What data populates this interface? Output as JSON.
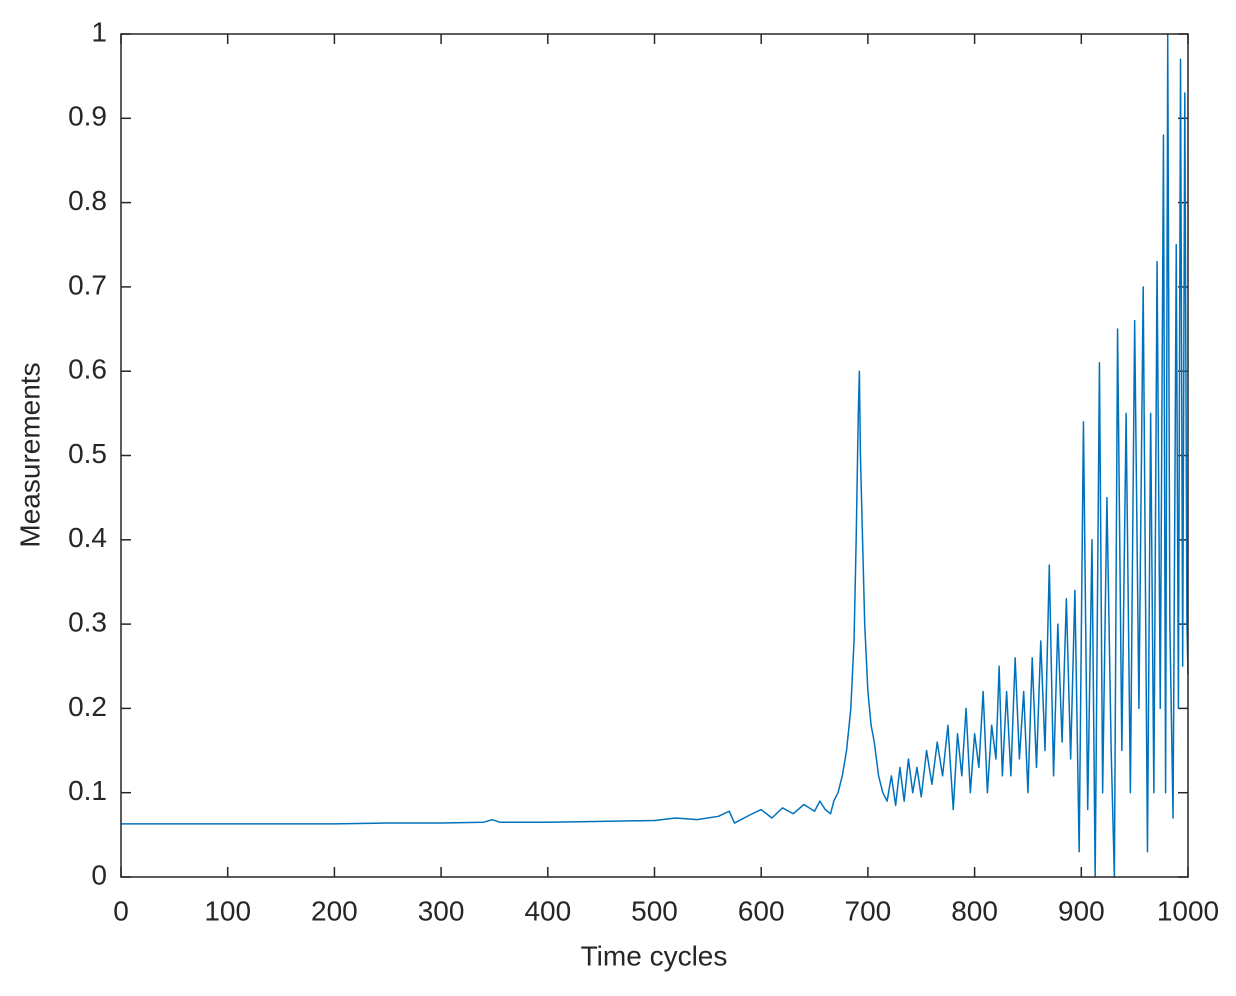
{
  "chart_data": {
    "type": "line",
    "xlabel": "Time cycles",
    "ylabel": "Measurements",
    "xlim": [
      0,
      1000
    ],
    "ylim": [
      0,
      1
    ],
    "xticks": [
      0,
      100,
      200,
      300,
      400,
      500,
      600,
      700,
      800,
      900,
      1000
    ],
    "yticks": [
      0,
      0.1,
      0.2,
      0.3,
      0.4,
      0.5,
      0.6,
      0.7,
      0.8,
      0.9,
      1
    ],
    "grid": false,
    "series": [
      {
        "color": "#0072bd",
        "x": [
          0,
          100,
          200,
          250,
          300,
          340,
          348,
          355,
          400,
          450,
          500,
          520,
          540,
          560,
          570,
          575,
          590,
          600,
          610,
          620,
          630,
          640,
          650,
          655,
          660,
          665,
          668,
          672,
          676,
          680,
          684,
          687,
          689,
          691,
          692,
          693,
          695,
          697,
          700,
          703,
          706,
          710,
          714,
          718,
          722,
          726,
          730,
          734,
          738,
          742,
          746,
          750,
          755,
          760,
          765,
          770,
          775,
          780,
          784,
          788,
          792,
          796,
          800,
          804,
          808,
          812,
          816,
          820,
          823,
          826,
          830,
          834,
          838,
          842,
          846,
          850,
          854,
          858,
          862,
          866,
          870,
          874,
          878,
          882,
          886,
          890,
          894,
          898,
          902,
          906,
          910,
          913,
          917,
          920,
          924,
          928,
          931,
          934,
          938,
          942,
          946,
          950,
          954,
          958,
          962,
          965,
          968,
          971,
          974,
          977,
          979,
          981,
          983,
          986,
          989,
          991,
          993,
          995,
          997,
          999,
          1000
        ],
        "values": [
          0.063,
          0.063,
          0.063,
          0.064,
          0.064,
          0.065,
          0.068,
          0.065,
          0.065,
          0.066,
          0.067,
          0.07,
          0.068,
          0.072,
          0.078,
          0.064,
          0.074,
          0.08,
          0.07,
          0.082,
          0.075,
          0.086,
          0.078,
          0.09,
          0.08,
          0.075,
          0.09,
          0.1,
          0.12,
          0.15,
          0.2,
          0.28,
          0.4,
          0.55,
          0.6,
          0.5,
          0.4,
          0.3,
          0.22,
          0.18,
          0.16,
          0.12,
          0.1,
          0.09,
          0.12,
          0.085,
          0.13,
          0.09,
          0.14,
          0.1,
          0.13,
          0.095,
          0.15,
          0.11,
          0.16,
          0.12,
          0.18,
          0.08,
          0.17,
          0.12,
          0.2,
          0.1,
          0.17,
          0.13,
          0.22,
          0.1,
          0.18,
          0.14,
          0.25,
          0.12,
          0.22,
          0.12,
          0.26,
          0.14,
          0.22,
          0.1,
          0.26,
          0.13,
          0.28,
          0.15,
          0.37,
          0.12,
          0.3,
          0.16,
          0.33,
          0.14,
          0.34,
          0.03,
          0.54,
          0.08,
          0.4,
          0.0,
          0.61,
          0.1,
          0.45,
          0.15,
          0.0,
          0.65,
          0.15,
          0.55,
          0.1,
          0.66,
          0.2,
          0.7,
          0.03,
          0.55,
          0.1,
          0.73,
          0.2,
          0.88,
          0.1,
          1.0,
          0.3,
          0.07,
          0.75,
          0.2,
          0.97,
          0.25,
          0.93,
          0.3,
          0.24
        ]
      }
    ]
  }
}
